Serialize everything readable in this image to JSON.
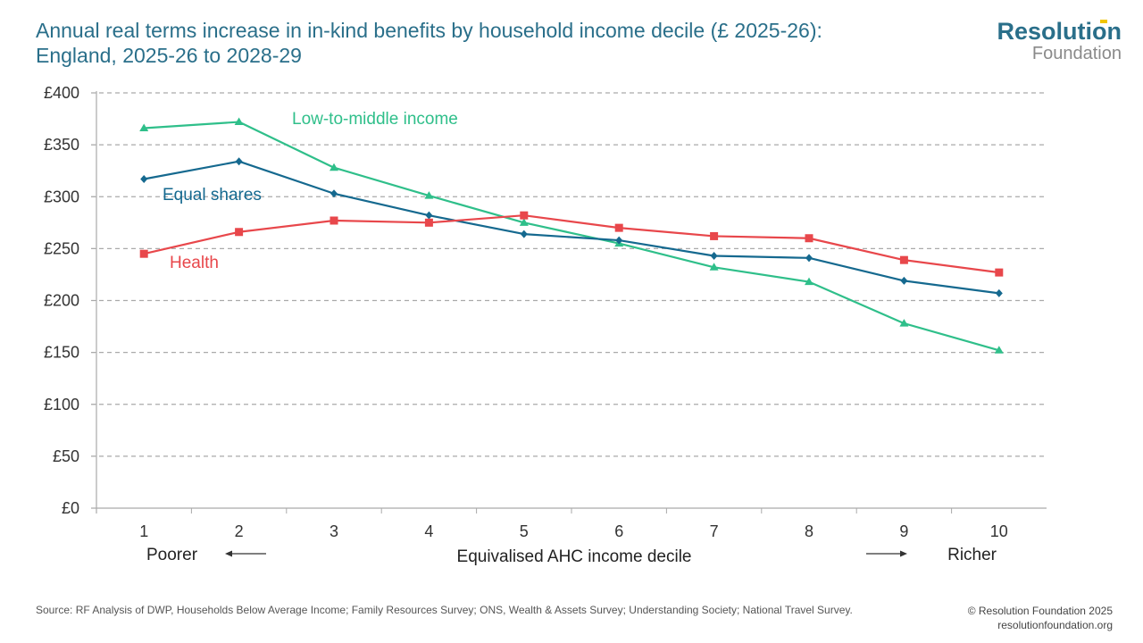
{
  "header": {
    "title_line1": "Annual real terms increase in in-kind benefits by household income decile (£ 2025-26):",
    "title_line2": "England, 2025-26 to 2028-29",
    "logo_top": "Resolution",
    "logo_bottom": "Foundation"
  },
  "footer": {
    "source": "Source: RF Analysis of DWP, Households Below Average Income; Family Resources Survey; ONS, Wealth & Assets Survey; Understanding Society; National Travel Survey.",
    "copyright": "© Resolution Foundation 2025",
    "website": "resolutionfoundation.org"
  },
  "colors": {
    "title": "#2a6f8a",
    "health": "#e8474b",
    "equal_shares": "#15698f",
    "low_to_middle": "#2fbf8a",
    "grid": "#aaaaaa",
    "axis": "#aaaaaa",
    "logo_accent": "#f2c500"
  },
  "chart_data": {
    "type": "line",
    "title": "Annual real terms increase in in-kind benefits by household income decile (£ 2025-26): England, 2025-26 to 2028-29",
    "xlabel": "Equivalised AHC income decile",
    "x_left_label": "Poorer",
    "x_right_label": "Richer",
    "ylabel": "",
    "categories": [
      "1",
      "2",
      "3",
      "4",
      "5",
      "6",
      "7",
      "8",
      "9",
      "10"
    ],
    "ylim": [
      0,
      400
    ],
    "yticks": [
      0,
      50,
      100,
      150,
      200,
      250,
      300,
      350,
      400
    ],
    "ytick_labels": [
      "£0",
      "£50",
      "£100",
      "£150",
      "£200",
      "£250",
      "£300",
      "£350",
      "£400"
    ],
    "grid": true,
    "legend": "inline-labels",
    "series": [
      {
        "name": "Low-to-middle income",
        "key": "low_to_middle",
        "marker": "triangle",
        "values": [
          366,
          372,
          328,
          301,
          275,
          255,
          232,
          218,
          178,
          152
        ]
      },
      {
        "name": "Equal shares",
        "key": "equal_shares",
        "marker": "diamond",
        "values": [
          317,
          334,
          303,
          282,
          264,
          258,
          243,
          241,
          219,
          207
        ]
      },
      {
        "name": "Health",
        "key": "health",
        "marker": "square",
        "values": [
          245,
          266,
          277,
          275,
          282,
          270,
          262,
          260,
          239,
          227
        ]
      }
    ]
  }
}
